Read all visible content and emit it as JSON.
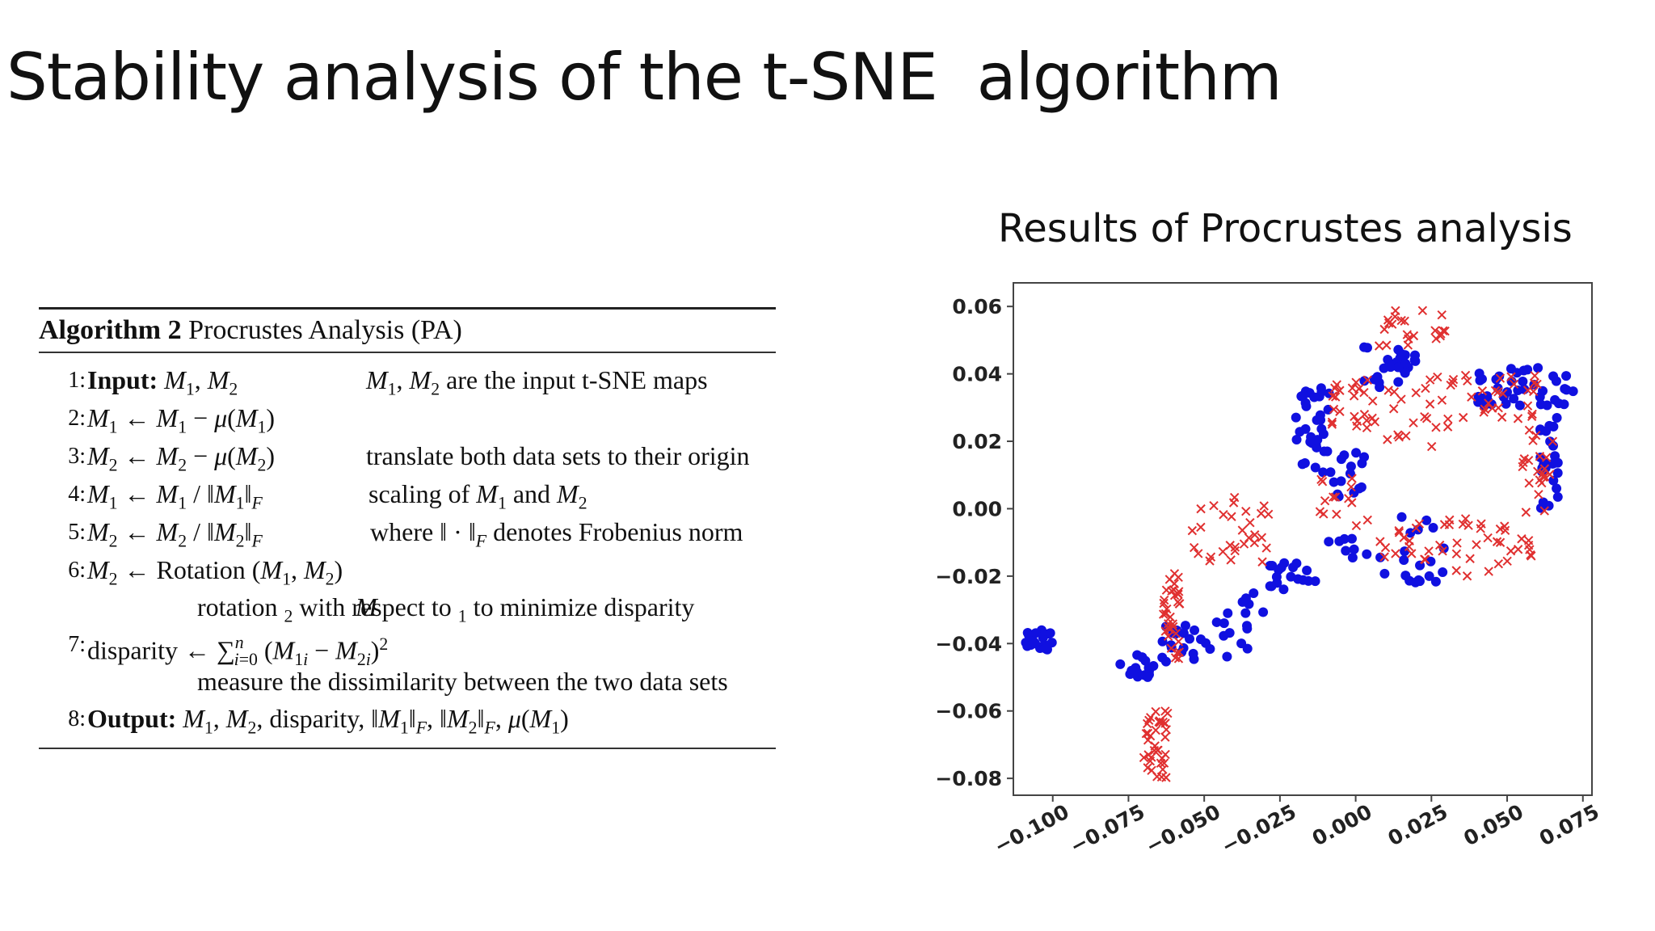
{
  "slide": {
    "title": "Stability analysis of the t-SNE  algorithm",
    "plot_heading": "Results of Procrustes analysis"
  },
  "algorithm": {
    "label": "Algorithm 2",
    "name": "Procrustes Analysis (PA)",
    "lines": [
      {
        "num": "1:",
        "code": "Input: M1, M2",
        "note": "M1, M2 are the input t-SNE maps"
      },
      {
        "num": "2:",
        "code": "M1 ← M1 − μ(M1)",
        "note": ""
      },
      {
        "num": "3:",
        "code": "M2 ← M2 − μ(M2)",
        "note": "translate both data sets to their origin"
      },
      {
        "num": "4:",
        "code": "M1 ← M1 / ‖M1‖F",
        "note": "scaling of M1 and M2"
      },
      {
        "num": "5:",
        "code": "M2 ← M2 / ‖M2‖F",
        "note": "where ‖ · ‖F denotes Frobenius norm"
      },
      {
        "num": "6:",
        "code": "M2 ← Rotation (M1, M2)",
        "note": "rotation M2 with respect to M1 to minimize disparity"
      },
      {
        "num": "7:",
        "code": "disparity ← Σi=0..n (M1i − M2i)^2",
        "note": "measure the dissimilarity between the two data sets"
      },
      {
        "num": "8:",
        "code": "Output: M1, M2, disparity, ‖M1‖F, ‖M2‖F, μ(M1)",
        "note": ""
      }
    ]
  },
  "chart_data": {
    "type": "scatter",
    "title": "",
    "xlabel": "",
    "ylabel": "",
    "xlim": [
      -0.113,
      0.078
    ],
    "ylim": [
      -0.085,
      0.067
    ],
    "xticks": [
      "−0.100",
      "−0.075",
      "−0.050",
      "−0.025",
      "0.000",
      "0.025",
      "0.050",
      "0.075"
    ],
    "yticks": [
      "0.06",
      "0.04",
      "0.02",
      "0.00",
      "−0.02",
      "−0.04",
      "−0.06",
      "−0.08"
    ],
    "grid": false,
    "legend": "none",
    "series": [
      {
        "marker": "circle",
        "color": "#1010e0",
        "clusters": [
          {
            "x": [
              -0.11,
              -0.1
            ],
            "y": [
              -0.043,
              -0.036
            ],
            "n": 22
          },
          {
            "x": [
              -0.078,
              -0.064
            ],
            "y": [
              -0.05,
              -0.043
            ],
            "n": 16
          },
          {
            "x": [
              -0.064,
              -0.048
            ],
            "y": [
              -0.049,
              -0.034
            ],
            "n": 20
          },
          {
            "x": [
              -0.048,
              -0.03
            ],
            "y": [
              -0.044,
              -0.025
            ],
            "n": 16
          },
          {
            "x": [
              -0.03,
              -0.012
            ],
            "y": [
              -0.024,
              -0.016
            ],
            "n": 18
          },
          {
            "x": [
              -0.02,
              -0.008
            ],
            "y": [
              0.01,
              0.036
            ],
            "n": 34
          },
          {
            "x": [
              -0.008,
              0.005
            ],
            "y": [
              0.003,
              0.018
            ],
            "n": 14
          },
          {
            "x": [
              0.002,
              0.02
            ],
            "y": [
              0.036,
              0.048
            ],
            "n": 26
          },
          {
            "x": [
              0.04,
              0.072
            ],
            "y": [
              0.03,
              0.042
            ],
            "n": 42
          },
          {
            "x": [
              0.06,
              0.067
            ],
            "y": [
              0.0,
              0.028
            ],
            "n": 26
          },
          {
            "x": [
              0.008,
              0.03
            ],
            "y": [
              -0.022,
              -0.002
            ],
            "n": 20
          },
          {
            "x": [
              -0.01,
              0.005
            ],
            "y": [
              -0.016,
              -0.008
            ],
            "n": 8
          }
        ]
      },
      {
        "marker": "x",
        "color": "#e03030",
        "clusters": [
          {
            "x": [
              -0.07,
              -0.062
            ],
            "y": [
              -0.08,
              -0.06
            ],
            "n": 36
          },
          {
            "x": [
              -0.064,
              -0.058
            ],
            "y": [
              -0.046,
              -0.018
            ],
            "n": 34
          },
          {
            "x": [
              -0.054,
              -0.028
            ],
            "y": [
              -0.016,
              0.004
            ],
            "n": 30
          },
          {
            "x": [
              -0.012,
              0.006
            ],
            "y": [
              -0.006,
              0.01
            ],
            "n": 14
          },
          {
            "x": [
              -0.008,
              0.008
            ],
            "y": [
              0.024,
              0.04
            ],
            "n": 24
          },
          {
            "x": [
              0.006,
              0.03
            ],
            "y": [
              0.048,
              0.06
            ],
            "n": 22
          },
          {
            "x": [
              0.01,
              0.032
            ],
            "y": [
              0.018,
              0.04
            ],
            "n": 20
          },
          {
            "x": [
              0.03,
              0.06
            ],
            "y": [
              0.026,
              0.04
            ],
            "n": 30
          },
          {
            "x": [
              0.055,
              0.066
            ],
            "y": [
              -0.002,
              0.024
            ],
            "n": 22
          },
          {
            "x": [
              0.03,
              0.06
            ],
            "y": [
              -0.02,
              -0.002
            ],
            "n": 30
          },
          {
            "x": [
              0.008,
              0.03
            ],
            "y": [
              -0.016,
              -0.004
            ],
            "n": 18
          }
        ]
      }
    ]
  }
}
